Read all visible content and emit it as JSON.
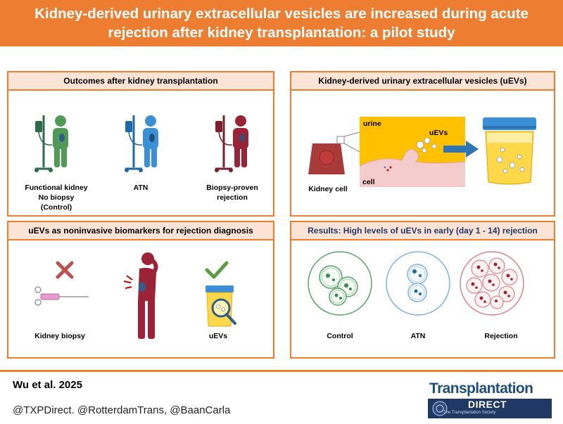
{
  "header": {
    "title": "Kidney-derived urinary extracellular vesicles are increased during acute rejection after kidney transplantation: a pilot study"
  },
  "panels": {
    "outcomes": {
      "title": "Outcomes after kidney transplantation",
      "functional_line1": "Functional kidney",
      "functional_line2": "No biopsy",
      "functional_line3": "(Control)",
      "atn": "ATN",
      "rejection_line1": "Biopsy-proven",
      "rejection_line2": "rejection"
    },
    "uevs": {
      "title": "Kidney-derived urinary extracellular vesicles (uEVs)",
      "urine": "urine",
      "uevs": "uEVs",
      "cell": "cell",
      "kidney_cell": "Kidney cell"
    },
    "biomarkers": {
      "title": "uEVs as noninvasive biomarkers for rejection diagnosis",
      "kidney_biopsy": "Kidney biopsy",
      "uevs": "uEVs"
    },
    "results": {
      "title": "Results: High levels of uEVs in early (day 1 - 14) rejection",
      "control": "Control",
      "atn": "ATN",
      "rejection": "Rejection"
    }
  },
  "footer": {
    "citation": "Wu et al. 2025",
    "handles": "@TXPDirect. @RotterdamTrans, @BaanCarla",
    "logo_word": "Transplantation",
    "logo_direct": "DIRECT",
    "logo_sub": "The Transplantation Society"
  },
  "colors": {
    "accent": "#ed7d31",
    "panel_title_bg": "#fbe4d5",
    "control_green": "#3a8a55",
    "atn_blue": "#2e75b6",
    "rejection_red": "#9b2335",
    "urine_yellow": "#ffc000"
  }
}
